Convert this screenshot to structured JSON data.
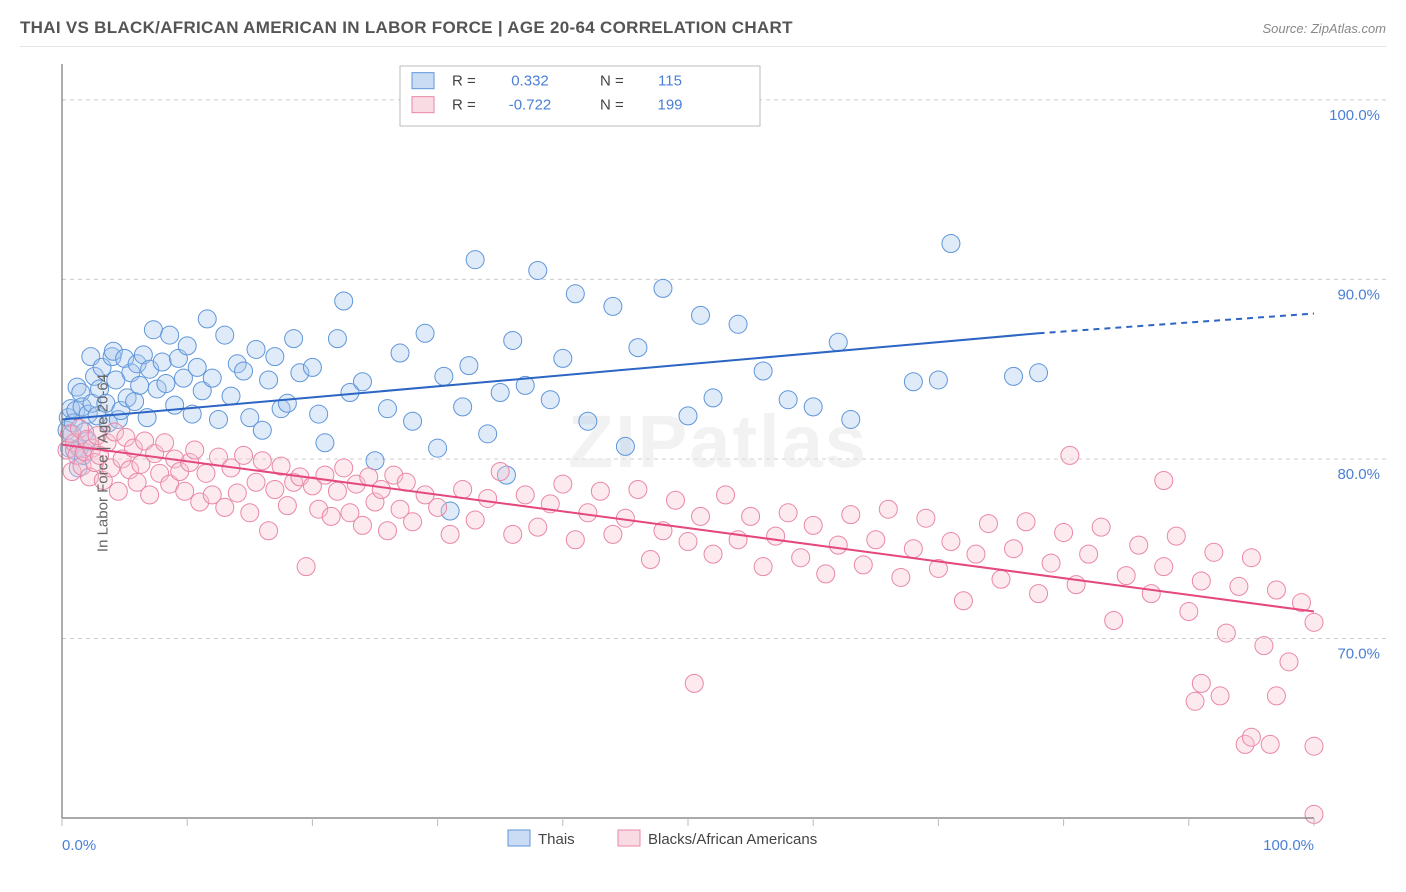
{
  "title": "THAI VS BLACK/AFRICAN AMERICAN IN LABOR FORCE | AGE 20-64 CORRELATION CHART",
  "source": "Source: ZipAtlas.com",
  "ylabel": "In Labor Force | Age 20-64",
  "watermark": "ZIPatlas",
  "chart": {
    "type": "scatter",
    "background_color": "#ffffff",
    "grid_color": "#cccccc",
    "axis_color": "#777777",
    "xlim": [
      0,
      100
    ],
    "ylim": [
      60,
      102
    ],
    "x_tick_positions": [
      0,
      10,
      20,
      30,
      40,
      50,
      60,
      70,
      80,
      90,
      100
    ],
    "x_tick_labels_shown": {
      "0": "0.0%",
      "100": "100.0%"
    },
    "y_tick_positions": [
      70,
      80,
      90,
      100
    ],
    "y_tick_labels": [
      "70.0%",
      "80.0%",
      "90.0%",
      "100.0%"
    ],
    "marker_radius": 9,
    "marker_fill_opacity": 0.35,
    "marker_stroke_width": 1,
    "line_width": 2,
    "tick_label_color": "#4a7fd6"
  },
  "series": [
    {
      "name": "Thais",
      "color_fill": "#a5c5ed",
      "color_stroke": "#5f96da",
      "line_color": "#2c65c4",
      "R": "0.332",
      "N": "115",
      "trend": {
        "x1": 0,
        "y1": 82.2,
        "x2": 78,
        "y2": 87.0,
        "x2_ext": 100,
        "y2_ext": 88.1
      },
      "points": [
        [
          0.4,
          81.6
        ],
        [
          0.5,
          82.3
        ],
        [
          0.6,
          80.6
        ],
        [
          0.7,
          82.8
        ],
        [
          0.8,
          81.4
        ],
        [
          0.9,
          82.0
        ],
        [
          1.0,
          80.5
        ],
        [
          1.1,
          82.7
        ],
        [
          1.2,
          84.0
        ],
        [
          1.3,
          79.5
        ],
        [
          1.4,
          80.6
        ],
        [
          1.5,
          83.7
        ],
        [
          1.6,
          82.9
        ],
        [
          1.7,
          80.2
        ],
        [
          1.8,
          81.5
        ],
        [
          2.0,
          81.0
        ],
        [
          2.1,
          82.5
        ],
        [
          2.3,
          85.7
        ],
        [
          2.4,
          83.1
        ],
        [
          2.6,
          84.6
        ],
        [
          2.8,
          82.4
        ],
        [
          3.0,
          83.9
        ],
        [
          3.2,
          85.1
        ],
        [
          3.5,
          83.1
        ],
        [
          3.7,
          82.0
        ],
        [
          4.0,
          85.7
        ],
        [
          4.1,
          86.0
        ],
        [
          4.3,
          84.4
        ],
        [
          4.5,
          82.2
        ],
        [
          4.7,
          82.7
        ],
        [
          5.0,
          85.6
        ],
        [
          5.2,
          83.4
        ],
        [
          5.5,
          84.8
        ],
        [
          5.8,
          83.2
        ],
        [
          6.0,
          85.3
        ],
        [
          6.2,
          84.1
        ],
        [
          6.5,
          85.8
        ],
        [
          6.8,
          82.3
        ],
        [
          7.0,
          85.0
        ],
        [
          7.3,
          87.2
        ],
        [
          7.6,
          83.9
        ],
        [
          8.0,
          85.4
        ],
        [
          8.3,
          84.2
        ],
        [
          8.6,
          86.9
        ],
        [
          9.0,
          83.0
        ],
        [
          9.3,
          85.6
        ],
        [
          9.7,
          84.5
        ],
        [
          10.0,
          86.3
        ],
        [
          10.4,
          82.5
        ],
        [
          10.8,
          85.1
        ],
        [
          11.2,
          83.8
        ],
        [
          11.6,
          87.8
        ],
        [
          12.0,
          84.5
        ],
        [
          12.5,
          82.2
        ],
        [
          13.0,
          86.9
        ],
        [
          13.5,
          83.5
        ],
        [
          14.0,
          85.3
        ],
        [
          14.5,
          84.9
        ],
        [
          15.0,
          82.3
        ],
        [
          15.5,
          86.1
        ],
        [
          16.0,
          81.6
        ],
        [
          16.5,
          84.4
        ],
        [
          17.0,
          85.7
        ],
        [
          17.5,
          82.8
        ],
        [
          18.0,
          83.1
        ],
        [
          18.5,
          86.7
        ],
        [
          19.0,
          84.8
        ],
        [
          20.0,
          85.1
        ],
        [
          20.5,
          82.5
        ],
        [
          21.0,
          80.9
        ],
        [
          22.0,
          86.7
        ],
        [
          22.5,
          88.8
        ],
        [
          23.0,
          83.7
        ],
        [
          24.0,
          84.3
        ],
        [
          25.0,
          79.9
        ],
        [
          26.0,
          82.8
        ],
        [
          27.0,
          85.9
        ],
        [
          28.0,
          82.1
        ],
        [
          29.0,
          87.0
        ],
        [
          30.0,
          80.6
        ],
        [
          30.5,
          84.6
        ],
        [
          31.0,
          77.1
        ],
        [
          32.0,
          82.9
        ],
        [
          32.5,
          85.2
        ],
        [
          33.0,
          91.1
        ],
        [
          34.0,
          81.4
        ],
        [
          35.0,
          83.7
        ],
        [
          35.5,
          79.1
        ],
        [
          36.0,
          86.6
        ],
        [
          37.0,
          84.1
        ],
        [
          38.0,
          90.5
        ],
        [
          39.0,
          83.3
        ],
        [
          40.0,
          85.6
        ],
        [
          41.0,
          89.2
        ],
        [
          42.0,
          82.1
        ],
        [
          44.0,
          88.5
        ],
        [
          45.0,
          80.7
        ],
        [
          46.0,
          86.2
        ],
        [
          48.0,
          89.5
        ],
        [
          50.0,
          82.4
        ],
        [
          51.0,
          88.0
        ],
        [
          52.0,
          83.4
        ],
        [
          54.0,
          87.5
        ],
        [
          56.0,
          84.9
        ],
        [
          58.0,
          83.3
        ],
        [
          60.0,
          82.9
        ],
        [
          62.0,
          86.5
        ],
        [
          63.0,
          82.2
        ],
        [
          68.0,
          84.3
        ],
        [
          70.0,
          84.4
        ],
        [
          71.0,
          92.0
        ],
        [
          76.0,
          84.6
        ],
        [
          78.0,
          84.8
        ]
      ]
    },
    {
      "name": "Blacks/African Americans",
      "color_fill": "#f5c3d2",
      "color_stroke": "#ea87a7",
      "line_color": "#e4487e",
      "R": "-0.722",
      "N": "199",
      "trend": {
        "x1": 0,
        "y1": 80.8,
        "x2": 100,
        "y2": 71.5,
        "x2_ext": 100,
        "y2_ext": 71.5
      },
      "points": [
        [
          0.4,
          80.5
        ],
        [
          0.6,
          81.4
        ],
        [
          0.8,
          79.3
        ],
        [
          1.0,
          80.9
        ],
        [
          1.2,
          80.2
        ],
        [
          1.4,
          81.7
        ],
        [
          1.6,
          79.6
        ],
        [
          1.8,
          80.4
        ],
        [
          2.0,
          81.1
        ],
        [
          2.2,
          79.0
        ],
        [
          2.4,
          80.6
        ],
        [
          2.6,
          79.8
        ],
        [
          2.8,
          81.3
        ],
        [
          3.0,
          80.2
        ],
        [
          3.3,
          78.8
        ],
        [
          3.6,
          80.9
        ],
        [
          3.9,
          79.5
        ],
        [
          4.2,
          81.5
        ],
        [
          4.5,
          78.2
        ],
        [
          4.8,
          80.0
        ],
        [
          5.1,
          81.2
        ],
        [
          5.4,
          79.4
        ],
        [
          5.7,
          80.6
        ],
        [
          6.0,
          78.7
        ],
        [
          6.3,
          79.7
        ],
        [
          6.6,
          81.0
        ],
        [
          7.0,
          78.0
        ],
        [
          7.4,
          80.3
        ],
        [
          7.8,
          79.2
        ],
        [
          8.2,
          80.9
        ],
        [
          8.6,
          78.6
        ],
        [
          9.0,
          80.0
        ],
        [
          9.4,
          79.3
        ],
        [
          9.8,
          78.2
        ],
        [
          10.2,
          79.8
        ],
        [
          10.6,
          80.5
        ],
        [
          11.0,
          77.6
        ],
        [
          11.5,
          79.2
        ],
        [
          12.0,
          78.0
        ],
        [
          12.5,
          80.1
        ],
        [
          13.0,
          77.3
        ],
        [
          13.5,
          79.5
        ],
        [
          14.0,
          78.1
        ],
        [
          14.5,
          80.2
        ],
        [
          15.0,
          77.0
        ],
        [
          15.5,
          78.7
        ],
        [
          16.0,
          79.9
        ],
        [
          16.5,
          76.0
        ],
        [
          17.0,
          78.3
        ],
        [
          17.5,
          79.6
        ],
        [
          18.0,
          77.4
        ],
        [
          18.5,
          78.7
        ],
        [
          19.0,
          79.0
        ],
        [
          19.5,
          74.0
        ],
        [
          20.0,
          78.5
        ],
        [
          20.5,
          77.2
        ],
        [
          21.0,
          79.1
        ],
        [
          21.5,
          76.8
        ],
        [
          22.0,
          78.2
        ],
        [
          22.5,
          79.5
        ],
        [
          23.0,
          77.0
        ],
        [
          23.5,
          78.6
        ],
        [
          24.0,
          76.3
        ],
        [
          24.5,
          79.0
        ],
        [
          25.0,
          77.6
        ],
        [
          25.5,
          78.3
        ],
        [
          26.0,
          76.0
        ],
        [
          26.5,
          79.1
        ],
        [
          27.0,
          77.2
        ],
        [
          27.5,
          78.7
        ],
        [
          28.0,
          76.5
        ],
        [
          29.0,
          78.0
        ],
        [
          30.0,
          77.3
        ],
        [
          31.0,
          75.8
        ],
        [
          32.0,
          78.3
        ],
        [
          33.0,
          76.6
        ],
        [
          34.0,
          77.8
        ],
        [
          35.0,
          79.3
        ],
        [
          36.0,
          75.8
        ],
        [
          37.0,
          78.0
        ],
        [
          38.0,
          76.2
        ],
        [
          39.0,
          77.5
        ],
        [
          40.0,
          78.6
        ],
        [
          41.0,
          75.5
        ],
        [
          42.0,
          77.0
        ],
        [
          43.0,
          78.2
        ],
        [
          44.0,
          75.8
        ],
        [
          45.0,
          76.7
        ],
        [
          46.0,
          78.3
        ],
        [
          47.0,
          74.4
        ],
        [
          48.0,
          76.0
        ],
        [
          49.0,
          77.7
        ],
        [
          50.0,
          75.4
        ],
        [
          50.5,
          67.5
        ],
        [
          51.0,
          76.8
        ],
        [
          52.0,
          74.7
        ],
        [
          53.0,
          78.0
        ],
        [
          54.0,
          75.5
        ],
        [
          55.0,
          76.8
        ],
        [
          56.0,
          74.0
        ],
        [
          57.0,
          75.7
        ],
        [
          58.0,
          77.0
        ],
        [
          59.0,
          74.5
        ],
        [
          60.0,
          76.3
        ],
        [
          61.0,
          73.6
        ],
        [
          62.0,
          75.2
        ],
        [
          63.0,
          76.9
        ],
        [
          64.0,
          74.1
        ],
        [
          65.0,
          75.5
        ],
        [
          66.0,
          77.2
        ],
        [
          67.0,
          73.4
        ],
        [
          68.0,
          75.0
        ],
        [
          69.0,
          76.7
        ],
        [
          70.0,
          73.9
        ],
        [
          71.0,
          75.4
        ],
        [
          72.0,
          72.1
        ],
        [
          73.0,
          74.7
        ],
        [
          74.0,
          76.4
        ],
        [
          75.0,
          73.3
        ],
        [
          76.0,
          75.0
        ],
        [
          77.0,
          76.5
        ],
        [
          78.0,
          72.5
        ],
        [
          79.0,
          74.2
        ],
        [
          80.0,
          75.9
        ],
        [
          80.5,
          80.2
        ],
        [
          81.0,
          73.0
        ],
        [
          82.0,
          74.7
        ],
        [
          83.0,
          76.2
        ],
        [
          84.0,
          71.0
        ],
        [
          85.0,
          73.5
        ],
        [
          86.0,
          75.2
        ],
        [
          87.0,
          72.5
        ],
        [
          88.0,
          78.8
        ],
        [
          88.0,
          74.0
        ],
        [
          89.0,
          75.7
        ],
        [
          90.0,
          71.5
        ],
        [
          90.5,
          66.5
        ],
        [
          91.0,
          73.2
        ],
        [
          91.0,
          67.5
        ],
        [
          92.0,
          74.8
        ],
        [
          92.5,
          66.8
        ],
        [
          93.0,
          70.3
        ],
        [
          94.0,
          72.9
        ],
        [
          94.5,
          64.1
        ],
        [
          95.0,
          74.5
        ],
        [
          95.0,
          64.5
        ],
        [
          96.0,
          69.6
        ],
        [
          96.5,
          64.1
        ],
        [
          97.0,
          72.7
        ],
        [
          97.0,
          66.8
        ],
        [
          98.0,
          68.7
        ],
        [
          99.0,
          72.0
        ],
        [
          100.0,
          64.0
        ],
        [
          100.0,
          70.9
        ],
        [
          100.0,
          60.2
        ]
      ]
    }
  ],
  "correlation_legend": {
    "labels": {
      "R": "R =",
      "N": "N ="
    }
  },
  "bottom_legend": {
    "items": [
      "Thais",
      "Blacks/African Americans"
    ]
  }
}
